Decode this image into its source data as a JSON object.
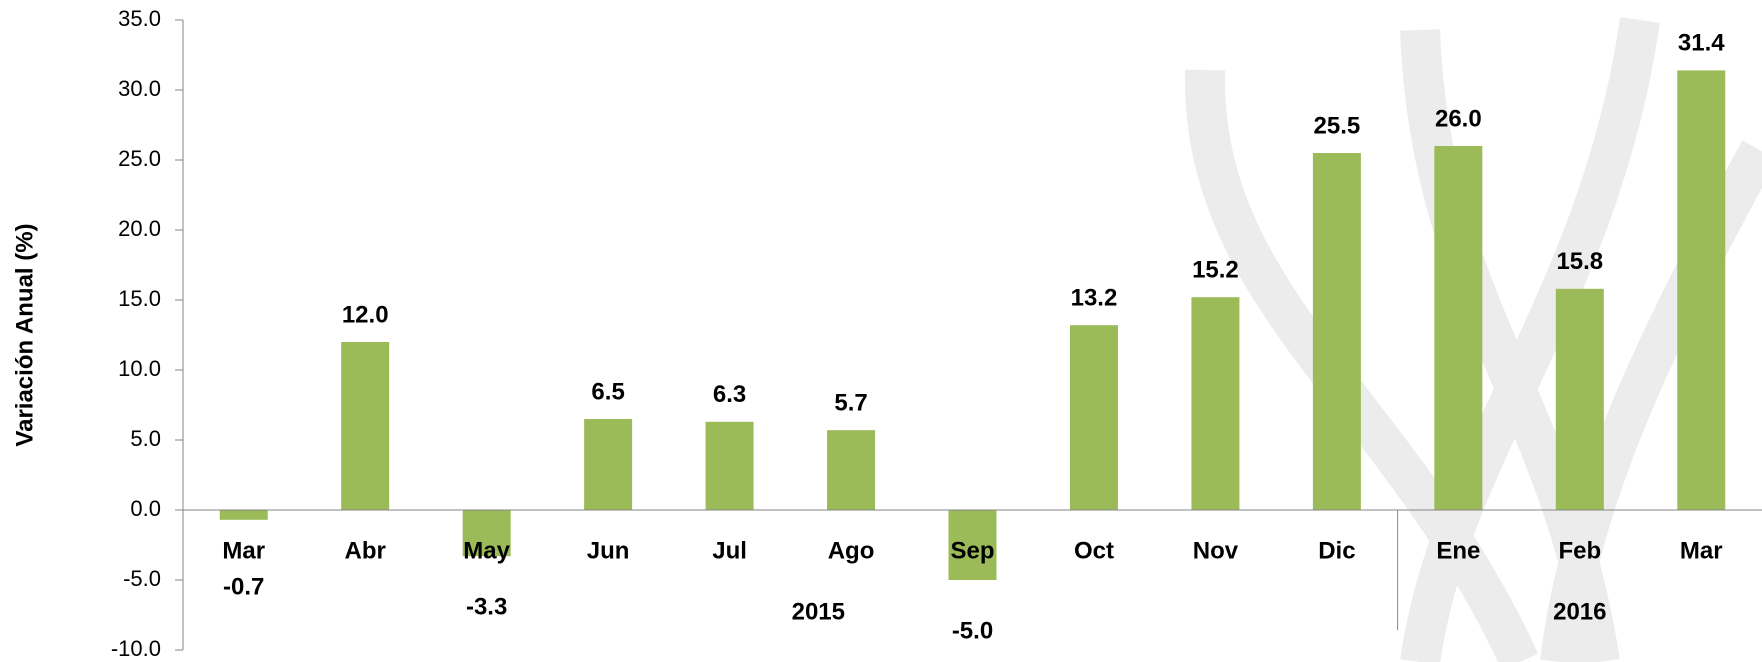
{
  "chart_data": {
    "type": "bar",
    "y_axis_label": "Variación Anual (%)",
    "categories": [
      "Mar",
      "Abr",
      "May",
      "Jun",
      "Jul",
      "Ago",
      "Sep",
      "Oct",
      "Nov",
      "Dic",
      "Ene",
      "Feb",
      "Mar"
    ],
    "groups": [
      "2015",
      "2016"
    ],
    "values": [
      -0.7,
      12.0,
      -3.3,
      6.5,
      6.3,
      5.7,
      -5.0,
      13.2,
      15.2,
      25.5,
      26.0,
      15.8,
      31.4
    ],
    "value_labels": [
      "-0.7",
      "12.0",
      "-3.3",
      "6.5",
      "6.3",
      "5.7",
      "-5.0",
      "13.2",
      "15.2",
      "25.5",
      "26.0",
      "15.8",
      "31.4"
    ],
    "color": "#9bbb59",
    "ylim": [
      -10,
      35
    ],
    "yticks": [
      {
        "value": -10,
        "label": "-10.0"
      },
      {
        "value": -5,
        "label": "-5.0"
      },
      {
        "value": 0,
        "label": "0.0"
      },
      {
        "value": 5,
        "label": "5.0"
      },
      {
        "value": 10,
        "label": "10.0"
      },
      {
        "value": 15,
        "label": "15.0"
      },
      {
        "value": 20,
        "label": "20.0"
      },
      {
        "value": 25,
        "label": "25.0"
      },
      {
        "value": 30,
        "label": "30.0"
      },
      {
        "value": 35,
        "label": "35.0"
      }
    ]
  }
}
